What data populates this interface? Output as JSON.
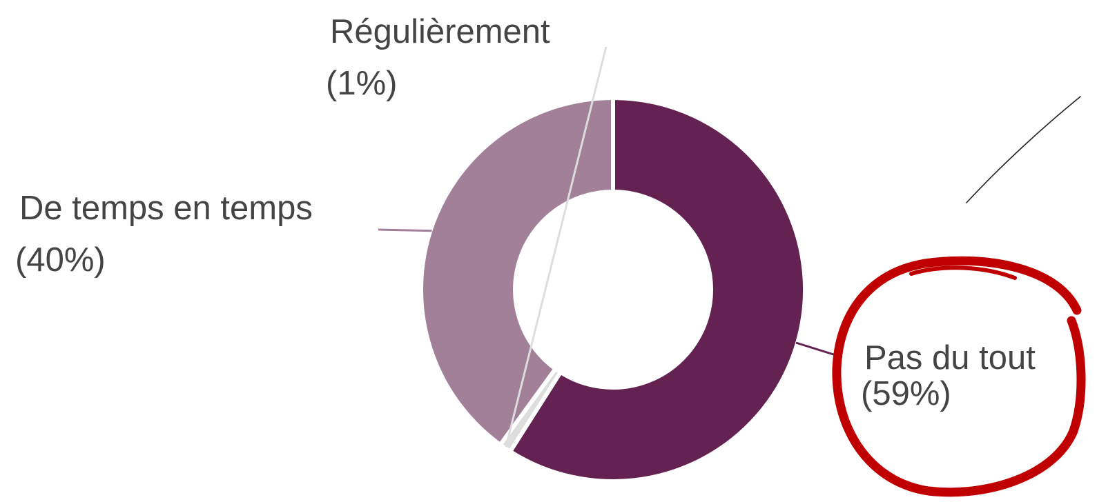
{
  "chart_data": {
    "type": "pie",
    "donut": true,
    "categories": [
      "Pas du tout",
      "Régulièrement",
      "De temps en temps"
    ],
    "values": [
      59,
      1,
      40
    ],
    "percent_labels": [
      "(59%)",
      "(1%)",
      "(40%)"
    ],
    "colors": [
      "#632252",
      "#dddddd",
      "#a18098"
    ],
    "legend": "none",
    "annotations": [
      {
        "type": "hand-drawn-circle",
        "target": "Pas du tout",
        "color": "#c00000"
      }
    ]
  }
}
